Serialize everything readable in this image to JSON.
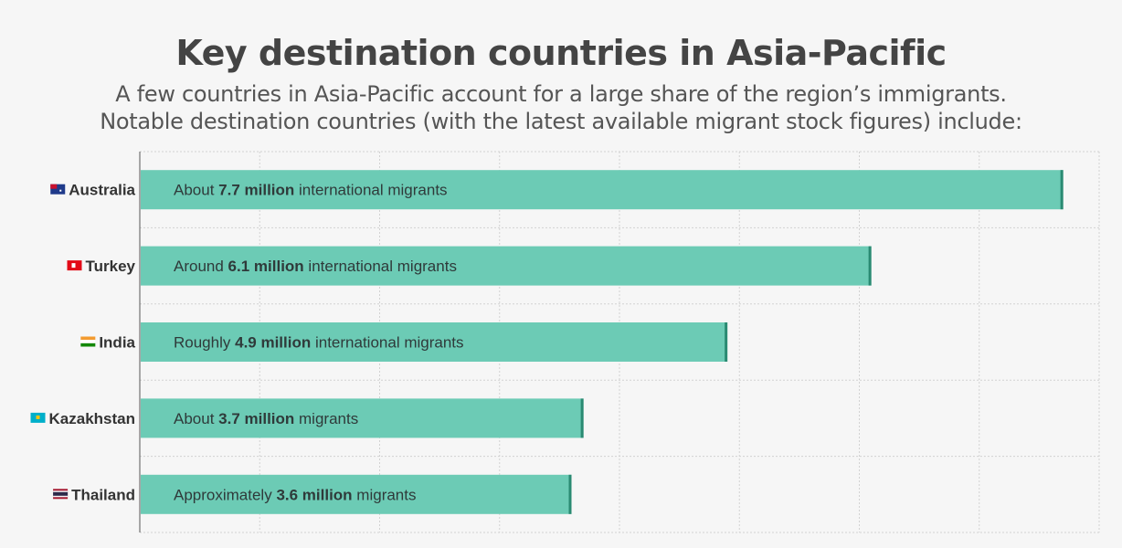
{
  "title": "Key destination countries in Asia-Pacific",
  "subtitle_line1": "A few countries in Asia-Pacific account for a large share of the region’s immigrants.",
  "subtitle_line2": "Notable destination countries (with the latest available migrant stock figures) include:",
  "colors": {
    "bar": "#6ccbb5",
    "bar_edge": "#2a8a72",
    "grid": "#d2d2d2",
    "axis": "#555555"
  },
  "chart_data": {
    "type": "bar",
    "orientation": "horizontal",
    "title": "Key destination countries in Asia-Pacific",
    "categories": [
      "Australia",
      "Turkey",
      "India",
      "Kazakhstan",
      "Thailand"
    ],
    "flag_icons": [
      "australia-flag-icon",
      "turkey-flag-icon",
      "india-flag-icon",
      "kazakhstan-flag-icon",
      "thailand-flag-icon"
    ],
    "values": [
      7.7,
      6.1,
      4.9,
      3.7,
      3.6
    ],
    "unit": "million",
    "xlim": [
      0,
      8
    ],
    "grid": true,
    "labels": [
      {
        "prefix": "About ",
        "bold": "7.7 million",
        "suffix": " international migrants"
      },
      {
        "prefix": "Around ",
        "bold": "6.1 million",
        "suffix": " international migrants"
      },
      {
        "prefix": "Roughly ",
        "bold": "4.9 million",
        "suffix": " international migrants"
      },
      {
        "prefix": "About ",
        "bold": "3.7 million",
        "suffix": " migrants"
      },
      {
        "prefix": "Approximately ",
        "bold": "3.6 million",
        "suffix": " migrants"
      }
    ]
  }
}
